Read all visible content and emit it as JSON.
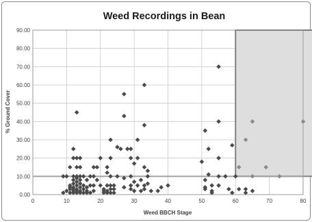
{
  "chart_data": {
    "type": "scatter",
    "title": "Weed Recordings in Bean",
    "xlabel": "Weed BBCH Stage",
    "ylabel": "% Ground Cover",
    "xlim": [
      0,
      80
    ],
    "ylim": [
      0,
      90
    ],
    "x_ticks": [
      "0",
      "10",
      "20",
      "30",
      "40",
      "50",
      "60",
      "70",
      "80"
    ],
    "y_ticks": [
      "0.00",
      "10.00",
      "20.00",
      "30.00",
      "40.00",
      "50.00",
      "60.00",
      "70.00",
      "80.00",
      "90.00"
    ],
    "grid": true,
    "threshold_line": {
      "y": 10,
      "color": "#a0a0a0"
    },
    "highlight_region": {
      "x": [
        60,
        84
      ],
      "y": [
        10,
        90
      ],
      "fill": "#dedede",
      "stroke": "#808080"
    },
    "colors": {
      "series": "#4a4a4a",
      "highlighted_series": "#8a8a8a",
      "grid": "#c8c8c8",
      "frame": "#8c8c8c"
    },
    "series": [
      {
        "color": "#4a4a4a",
        "points": [
          [
            9,
            1
          ],
          [
            9,
            10
          ],
          [
            10,
            2
          ],
          [
            10,
            10
          ],
          [
            11,
            4
          ],
          [
            11,
            15
          ],
          [
            11,
            1
          ],
          [
            11,
            3
          ],
          [
            11,
            5
          ],
          [
            12,
            25
          ],
          [
            12,
            20
          ],
          [
            12,
            10
          ],
          [
            12,
            1
          ],
          [
            12,
            2
          ],
          [
            12,
            4
          ],
          [
            12,
            6
          ],
          [
            12,
            8
          ],
          [
            12,
            3
          ],
          [
            13,
            45
          ],
          [
            13,
            20
          ],
          [
            13,
            15
          ],
          [
            13,
            10
          ],
          [
            13,
            5
          ],
          [
            13,
            3
          ],
          [
            13,
            1
          ],
          [
            13,
            2
          ],
          [
            13,
            7
          ],
          [
            13,
            9
          ],
          [
            14,
            20
          ],
          [
            14,
            15
          ],
          [
            14,
            10
          ],
          [
            14,
            6
          ],
          [
            14,
            4
          ],
          [
            14,
            2
          ],
          [
            14,
            1
          ],
          [
            14,
            8
          ],
          [
            15,
            10
          ],
          [
            15,
            5
          ],
          [
            15,
            1
          ],
          [
            15,
            3
          ],
          [
            16,
            8
          ],
          [
            16,
            2
          ],
          [
            16,
            4
          ],
          [
            16,
            1
          ],
          [
            17,
            10
          ],
          [
            17,
            5
          ],
          [
            17,
            1
          ],
          [
            18,
            15
          ],
          [
            18,
            10
          ],
          [
            18,
            5
          ],
          [
            18,
            2
          ],
          [
            19,
            15
          ],
          [
            19,
            8
          ],
          [
            20,
            20
          ],
          [
            20,
            5
          ],
          [
            21,
            1
          ],
          [
            21,
            3
          ],
          [
            21,
            2
          ],
          [
            22,
            15
          ],
          [
            22,
            12
          ],
          [
            22,
            5
          ],
          [
            22,
            2
          ],
          [
            22,
            1
          ],
          [
            23,
            30
          ],
          [
            23,
            20
          ],
          [
            23,
            10
          ],
          [
            23,
            5
          ],
          [
            23,
            3
          ],
          [
            23,
            1
          ],
          [
            24,
            5
          ],
          [
            24,
            3
          ],
          [
            24,
            1
          ],
          [
            25,
            26
          ],
          [
            25,
            10
          ],
          [
            26,
            25
          ],
          [
            27,
            55
          ],
          [
            27,
            43
          ],
          [
            27,
            9
          ],
          [
            27,
            4
          ],
          [
            28,
            25
          ],
          [
            29,
            25
          ],
          [
            29,
            20
          ],
          [
            29,
            10
          ],
          [
            29,
            5
          ],
          [
            29,
            3
          ],
          [
            30,
            17
          ],
          [
            30,
            7
          ],
          [
            30,
            2
          ],
          [
            31,
            30
          ],
          [
            31,
            20
          ],
          [
            31,
            5
          ],
          [
            32,
            2
          ],
          [
            32,
            8
          ],
          [
            33,
            60
          ],
          [
            33,
            38
          ],
          [
            33,
            15
          ],
          [
            33,
            5
          ],
          [
            33,
            3
          ],
          [
            34,
            13
          ],
          [
            34,
            10
          ],
          [
            34,
            6
          ],
          [
            35,
            2
          ],
          [
            37,
            2
          ],
          [
            38,
            4
          ],
          [
            40,
            5
          ],
          [
            50,
            18
          ],
          [
            51,
            35
          ],
          [
            51,
            8
          ],
          [
            51,
            4
          ],
          [
            51,
            3
          ],
          [
            52,
            25
          ],
          [
            52,
            11
          ],
          [
            53,
            5
          ],
          [
            53,
            2
          ],
          [
            53,
            1
          ],
          [
            55,
            70
          ],
          [
            55,
            40
          ],
          [
            55,
            20
          ],
          [
            55,
            10
          ],
          [
            55,
            5
          ],
          [
            57,
            10
          ],
          [
            58,
            3
          ],
          [
            59,
            27
          ],
          [
            59,
            1
          ],
          [
            60,
            10
          ],
          [
            61,
            3
          ],
          [
            63,
            3
          ],
          [
            63,
            1
          ],
          [
            65,
            2
          ]
        ]
      },
      {
        "color": "#8a8a8a",
        "points": [
          [
            61,
            15
          ],
          [
            63,
            30
          ],
          [
            65,
            40
          ],
          [
            65,
            10
          ],
          [
            69,
            15
          ],
          [
            73,
            10
          ],
          [
            80,
            40
          ]
        ]
      }
    ]
  }
}
